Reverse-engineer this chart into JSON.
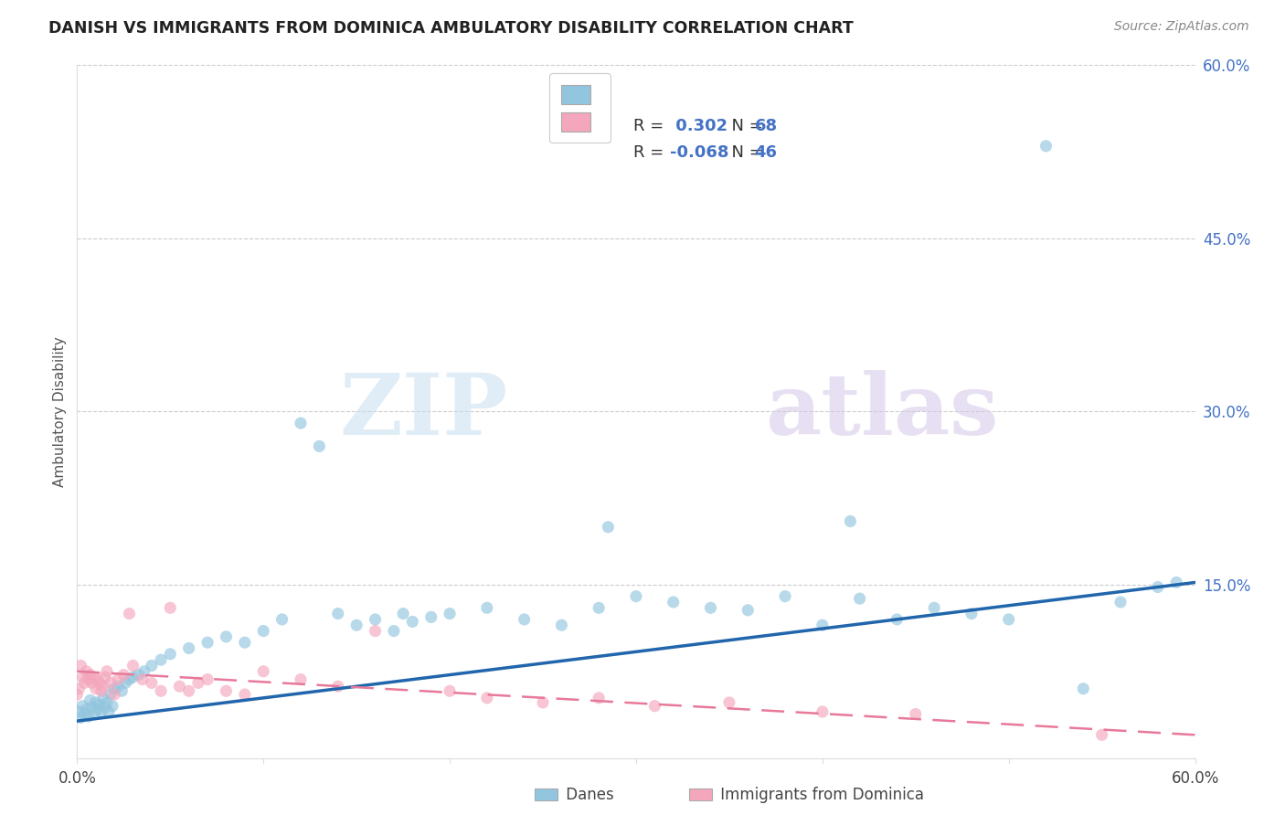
{
  "title": "DANISH VS IMMIGRANTS FROM DOMINICA AMBULATORY DISABILITY CORRELATION CHART",
  "source": "Source: ZipAtlas.com",
  "ylabel": "Ambulatory Disability",
  "xlim": [
    0.0,
    0.6
  ],
  "ylim": [
    0.0,
    0.6
  ],
  "ytick_positions": [
    0.15,
    0.3,
    0.45,
    0.6
  ],
  "ytick_labels": [
    "15.0%",
    "30.0%",
    "45.0%",
    "60.0%"
  ],
  "xtick_positions": [
    0.0,
    0.6
  ],
  "xtick_labels": [
    "0.0%",
    "60.0%"
  ],
  "watermark_zip": "ZIP",
  "watermark_atlas": "atlas",
  "danes_color": "#92c5de",
  "dominica_color": "#f4a6bc",
  "danes_line_color": "#2166ac",
  "dominica_line_color": "#e8799a",
  "legend_r_color": "#2166ac",
  "legend_n_color": "#2166ac",
  "danes_R": 0.302,
  "danes_N": 68,
  "dominica_R": -0.068,
  "dominica_N": 46,
  "danes_x": [
    0.001,
    0.002,
    0.003,
    0.004,
    0.005,
    0.006,
    0.007,
    0.008,
    0.009,
    0.01,
    0.011,
    0.012,
    0.013,
    0.014,
    0.015,
    0.016,
    0.017,
    0.018,
    0.019,
    0.02,
    0.022,
    0.024,
    0.026,
    0.028,
    0.03,
    0.033,
    0.036,
    0.04,
    0.045,
    0.05,
    0.06,
    0.07,
    0.08,
    0.09,
    0.1,
    0.11,
    0.12,
    0.13,
    0.14,
    0.15,
    0.16,
    0.17,
    0.18,
    0.19,
    0.2,
    0.22,
    0.24,
    0.26,
    0.28,
    0.3,
    0.32,
    0.34,
    0.36,
    0.38,
    0.4,
    0.42,
    0.44,
    0.46,
    0.48,
    0.5,
    0.52,
    0.54,
    0.56,
    0.58,
    0.59,
    0.285,
    0.175,
    0.415
  ],
  "danes_y": [
    0.04,
    0.035,
    0.045,
    0.038,
    0.042,
    0.036,
    0.05,
    0.044,
    0.038,
    0.048,
    0.042,
    0.046,
    0.04,
    0.052,
    0.044,
    0.048,
    0.04,
    0.055,
    0.045,
    0.06,
    0.062,
    0.058,
    0.065,
    0.068,
    0.07,
    0.072,
    0.075,
    0.08,
    0.085,
    0.09,
    0.095,
    0.1,
    0.105,
    0.1,
    0.11,
    0.12,
    0.29,
    0.27,
    0.125,
    0.115,
    0.12,
    0.11,
    0.118,
    0.122,
    0.125,
    0.13,
    0.12,
    0.115,
    0.13,
    0.14,
    0.135,
    0.13,
    0.128,
    0.14,
    0.115,
    0.138,
    0.12,
    0.13,
    0.125,
    0.12,
    0.53,
    0.06,
    0.135,
    0.148,
    0.152,
    0.2,
    0.125,
    0.205
  ],
  "dominica_x": [
    0.0,
    0.001,
    0.002,
    0.003,
    0.004,
    0.005,
    0.006,
    0.007,
    0.008,
    0.009,
    0.01,
    0.011,
    0.012,
    0.013,
    0.014,
    0.015,
    0.016,
    0.018,
    0.02,
    0.022,
    0.025,
    0.028,
    0.03,
    0.035,
    0.04,
    0.045,
    0.05,
    0.055,
    0.06,
    0.065,
    0.07,
    0.08,
    0.09,
    0.1,
    0.12,
    0.14,
    0.16,
    0.2,
    0.22,
    0.25,
    0.28,
    0.31,
    0.35,
    0.4,
    0.45,
    0.55
  ],
  "dominica_y": [
    0.055,
    0.06,
    0.08,
    0.07,
    0.065,
    0.075,
    0.068,
    0.072,
    0.065,
    0.07,
    0.06,
    0.068,
    0.065,
    0.058,
    0.062,
    0.07,
    0.075,
    0.065,
    0.055,
    0.068,
    0.072,
    0.125,
    0.08,
    0.068,
    0.065,
    0.058,
    0.13,
    0.062,
    0.058,
    0.065,
    0.068,
    0.058,
    0.055,
    0.075,
    0.068,
    0.062,
    0.11,
    0.058,
    0.052,
    0.048,
    0.052,
    0.045,
    0.048,
    0.04,
    0.038,
    0.02
  ]
}
